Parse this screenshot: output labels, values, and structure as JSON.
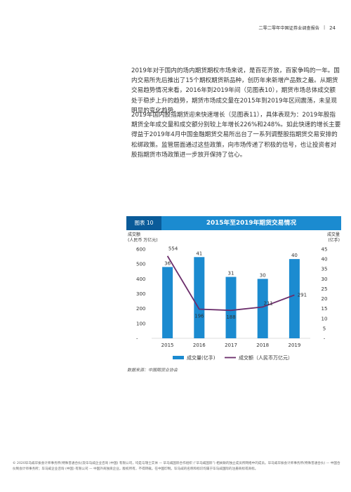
{
  "header": {
    "report_title": "二零二零年中国证券业调查报告",
    "separator": "|",
    "page_number": "24"
  },
  "paragraphs": [
    {
      "lines": [
        "2019年对于国内的场内期货期权市场来说，是百花齐放，百家争鸣的一年。国",
        "内交易所先后推出了15个期权期货新品种，创历年来新增产品数之最。从期货",
        "交易趋势情况来看，2016年到2019年间（见图表10），期货市场总体成交额",
        "处于稳步上升的趋势，期货市场成交量在2015年到2019年区间震荡，未呈现",
        "明显的变化趋势。"
      ]
    },
    {
      "lines": [
        "2019年国内股指期货迎来快速增长（见图表11），具体表现为：2019年股指",
        "期货全年成交量和成交额分别较上年增长226%和248%。如此快速的增长主要",
        "得益于2019年4月中国金融期货交易所出台了一系列调整股指期货交易安排的",
        "松绑政策。监管层面通过这些政策，向市场传递了积极的信号，也让投资者对",
        "股指期货市场政策进一步放开保持了信心。"
      ]
    }
  ],
  "figure": {
    "tag": "图表 10",
    "title": "2015年至2019年期货交易情况",
    "source": "数据来源：中国期货业协会"
  },
  "chart_data": {
    "type": "bar",
    "title": "2015年至2019年期货交易情况",
    "categories": [
      "2015",
      "2016",
      "2017",
      "2018",
      "2019"
    ],
    "series": [
      {
        "name": "成交量(亿手)",
        "type": "bar",
        "axis": "right",
        "values": [
          36,
          41,
          31,
          30,
          40
        ],
        "color": "#1b8bd0"
      },
      {
        "name": "成交额（人民币万亿元）",
        "type": "line",
        "axis": "left",
        "values": [
          554,
          196,
          188,
          211,
          291
        ],
        "color": "#6b2d6b"
      }
    ],
    "left_axis": {
      "label_line1": "成交额",
      "label_line2": "(人民币 万亿元)",
      "ticks": [
        "600",
        "500",
        "400",
        "300",
        "200",
        "100",
        "-"
      ],
      "range": [
        0,
        600
      ]
    },
    "right_axis": {
      "label_line1": "成交量",
      "label_line2": "(亿手)",
      "ticks": [
        "45",
        "40",
        "35",
        "30",
        "25",
        "20",
        "15",
        "10",
        "5",
        "-"
      ],
      "range": [
        0,
        45
      ]
    },
    "legend": [
      "成交量(亿手)",
      "成交额（人民币万亿元）"
    ],
    "legend_position": "bottom",
    "grid": false
  },
  "footer": {
    "text": "© 2020毕马威华振会计师事务所(特殊普通合伙)及毕马威企业咨询 (中国) 有限公司，均是与瑞士实体 — 毕马威国际合作组织 (“毕马威国际”) 相关联的独立成员所网络中的成员。毕马威华振会计师事务所(特殊普通合伙) — 中国合伙制会计师事务所；毕马威企业咨询 (中国) 有限公司 — 中国外商独资企业。版权所有，不得转载。在中国印制。毕马威的名称和标识均属于毕马威国际的注册商标或商标。"
  }
}
